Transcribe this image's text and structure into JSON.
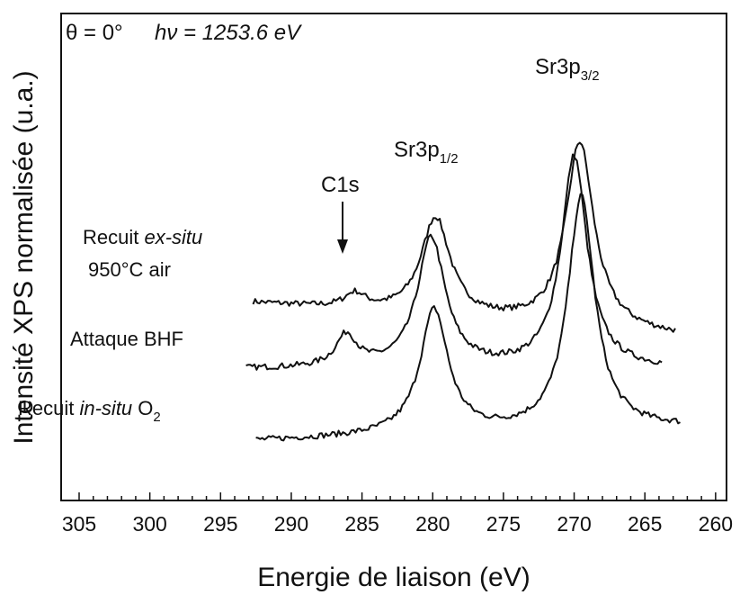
{
  "chart_data": {
    "type": "line",
    "title": "",
    "condition": {
      "theta": "θ = 0°",
      "photon": "hν = 1253.6 eV"
    },
    "xlabel": "Energie de liaison (eV)",
    "ylabel": "Intensité XPS normalisée (u.a.)",
    "xlim": [
      305,
      260
    ],
    "x_reversed": true,
    "xticks": [
      305,
      300,
      295,
      290,
      285,
      280,
      275,
      270,
      265,
      260
    ],
    "y_ticks_shown": false,
    "grid": false,
    "peak_labels": {
      "c1s": "C1s",
      "sr_half_main": "Sr3p",
      "sr_half_sub": "1/2",
      "sr_three_main": "Sr3p",
      "sr_three_sub": "3/2"
    },
    "series": [
      {
        "name_parts": [
          "Recuit ",
          "ex-situ",
          ""
        ],
        "name_line2": "950°C air",
        "x_range": [
          292.7,
          262.8
        ],
        "baseline": 0.52,
        "tail": 0.395,
        "slope": 0.0,
        "peaks": [
          {
            "center": 285.5,
            "width": 0.9,
            "height": 0.055
          },
          {
            "center": 279.8,
            "width": 1.25,
            "height": 0.37
          },
          {
            "center": 269.6,
            "width": 1.2,
            "height": 0.7
          }
        ]
      },
      {
        "name_parts": [
          "Attaque BHF",
          "",
          ""
        ],
        "name_line2": "",
        "x_range": [
          293.2,
          263.7
        ],
        "baseline": 0.27,
        "tail": 0.27,
        "slope": 0.0,
        "peaks": [
          {
            "center": 286.1,
            "width": 0.9,
            "height": 0.12
          },
          {
            "center": 280.1,
            "width": 1.2,
            "height": 0.49
          },
          {
            "center": 270.0,
            "width": 1.1,
            "height": 0.8
          }
        ]
      },
      {
        "name_parts": [
          "Recuit ",
          "in-situ",
          " O"
        ],
        "name_sub": "2",
        "name_line2": "",
        "x_range": [
          292.5,
          262.4
        ],
        "baseline": 0.0,
        "tail": 0.05,
        "slope": 0.0,
        "peaks": [
          {
            "center": 279.9,
            "width": 1.2,
            "height": 0.47
          },
          {
            "center": 269.5,
            "width": 1.15,
            "height": 0.88
          }
        ]
      }
    ]
  }
}
